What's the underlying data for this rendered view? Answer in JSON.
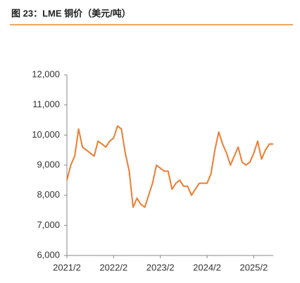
{
  "chart_data": {
    "type": "line",
    "title": "图 23：LME 铜价（美元/吨）",
    "x": [
      "2021/2",
      "2021/3",
      "2021/4",
      "2021/5",
      "2021/6",
      "2021/7",
      "2021/8",
      "2021/9",
      "2021/10",
      "2021/11",
      "2021/12",
      "2022/1",
      "2022/2",
      "2022/3",
      "2022/4",
      "2022/5",
      "2022/6",
      "2022/7",
      "2022/8",
      "2022/9",
      "2022/10",
      "2022/11",
      "2022/12",
      "2023/1",
      "2023/2",
      "2023/3",
      "2023/4",
      "2023/5",
      "2023/6",
      "2023/7",
      "2023/8",
      "2023/9",
      "2023/10",
      "2023/11",
      "2023/12",
      "2024/1",
      "2024/2",
      "2024/3",
      "2024/4",
      "2024/5",
      "2024/6",
      "2024/7",
      "2024/8",
      "2024/9",
      "2024/10",
      "2024/11",
      "2024/12",
      "2025/1",
      "2025/2",
      "2025/3",
      "2025/4",
      "2025/5",
      "2025/6",
      "2025/7"
    ],
    "series": [
      {
        "color": "#ed7d31",
        "values": [
          8500,
          9000,
          9300,
          10200,
          9600,
          9500,
          9400,
          9300,
          9800,
          9700,
          9600,
          9800,
          9900,
          10300,
          10200,
          9400,
          8800,
          7600,
          7900,
          7700,
          7600,
          8000,
          8400,
          9000,
          8900,
          8800,
          8800,
          8200,
          8400,
          8500,
          8300,
          8300,
          8000,
          8200,
          8400,
          8400,
          8400,
          8700,
          9500,
          10100,
          9700,
          9400,
          9000,
          9300,
          9600,
          9100,
          9000,
          9100,
          9400,
          9800,
          9200,
          9500,
          9700,
          9700
        ]
      }
    ],
    "xlim": [
      "2021/2",
      "2025/7"
    ],
    "xticks": [
      "2021/2",
      "2022/2",
      "2023/2",
      "2024/2",
      "2025/2"
    ],
    "ylim": [
      6000,
      12000
    ],
    "yticks": [
      {
        "value": 6000,
        "label": "6,000"
      },
      {
        "value": 7000,
        "label": "7,000"
      },
      {
        "value": 8000,
        "label": "8,000"
      },
      {
        "value": 9000,
        "label": "9,000"
      },
      {
        "value": 10000,
        "label": "10,000"
      },
      {
        "value": 11000,
        "label": "11,000"
      },
      {
        "value": 12000,
        "label": "12,000"
      }
    ],
    "grid": false
  }
}
